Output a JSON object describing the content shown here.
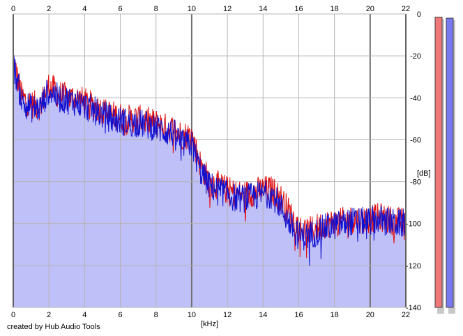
{
  "chart_data": {
    "type": "area",
    "xlabel": "[kHz]",
    "ylabel": "[dB]",
    "xlim": [
      0,
      22
    ],
    "ylim": [
      -140,
      0
    ],
    "x_ticks": [
      "0",
      "2",
      "4",
      "6",
      "8",
      "10",
      "12",
      "14",
      "16",
      "18",
      "20",
      "22"
    ],
    "y_ticks": [
      "0",
      "-20",
      "-40",
      "-60",
      "-80",
      "-100",
      "-120",
      "-140"
    ],
    "grid": true,
    "series": [
      {
        "color": "#e01010",
        "x": [
          0,
          0.5,
          1,
          1.5,
          2,
          2.5,
          3,
          3.5,
          4,
          4.5,
          5,
          5.5,
          6,
          6.5,
          7,
          7.5,
          8,
          8.5,
          9,
          9.5,
          10,
          10.5,
          11,
          11.5,
          12,
          12.5,
          13,
          13.5,
          14,
          14.5,
          15,
          15.5,
          16,
          16.5,
          17,
          17.5,
          18,
          18.5,
          19,
          19.5,
          20,
          20.5,
          21,
          21.5,
          22
        ],
        "values": [
          -22,
          -40,
          -43,
          -44,
          -34,
          -38,
          -40,
          -40,
          -42,
          -44,
          -46,
          -48,
          -49,
          -50,
          -50,
          -51,
          -52,
          -54,
          -55,
          -58,
          -58,
          -72,
          -80,
          -82,
          -84,
          -86,
          -86,
          -85,
          -84,
          -84,
          -88,
          -95,
          -102,
          -104,
          -102,
          -100,
          -100,
          -99,
          -98,
          -98,
          -98,
          -97,
          -98,
          -99,
          -99
        ]
      },
      {
        "color": "#1010d0",
        "x": [
          0,
          0.5,
          1,
          1.5,
          2,
          2.5,
          3,
          3.5,
          4,
          4.5,
          5,
          5.5,
          6,
          6.5,
          7,
          7.5,
          8,
          8.5,
          9,
          9.5,
          10,
          10.5,
          11,
          11.5,
          12,
          12.5,
          13,
          13.5,
          14,
          14.5,
          15,
          15.5,
          16,
          16.5,
          17,
          17.5,
          18,
          18.5,
          19,
          19.5,
          20,
          20.5,
          21,
          21.5,
          22
        ],
        "values": [
          -24,
          -42,
          -45,
          -45,
          -36,
          -40,
          -41,
          -42,
          -44,
          -46,
          -48,
          -50,
          -51,
          -52,
          -52,
          -53,
          -54,
          -56,
          -57,
          -62,
          -62,
          -75,
          -82,
          -84,
          -86,
          -88,
          -88,
          -87,
          -86,
          -86,
          -92,
          -100,
          -106,
          -106,
          -104,
          -102,
          -101,
          -100,
          -99,
          -99,
          -99,
          -98,
          -99,
          -100,
          -100
        ]
      }
    ],
    "fill_color": "#c0c0f8",
    "meters": [
      {
        "color": "#f07878",
        "level": -1.5
      },
      {
        "color": "#7878f0",
        "level": -2.0
      }
    ]
  },
  "credit": "created by Hub Audio Tools"
}
